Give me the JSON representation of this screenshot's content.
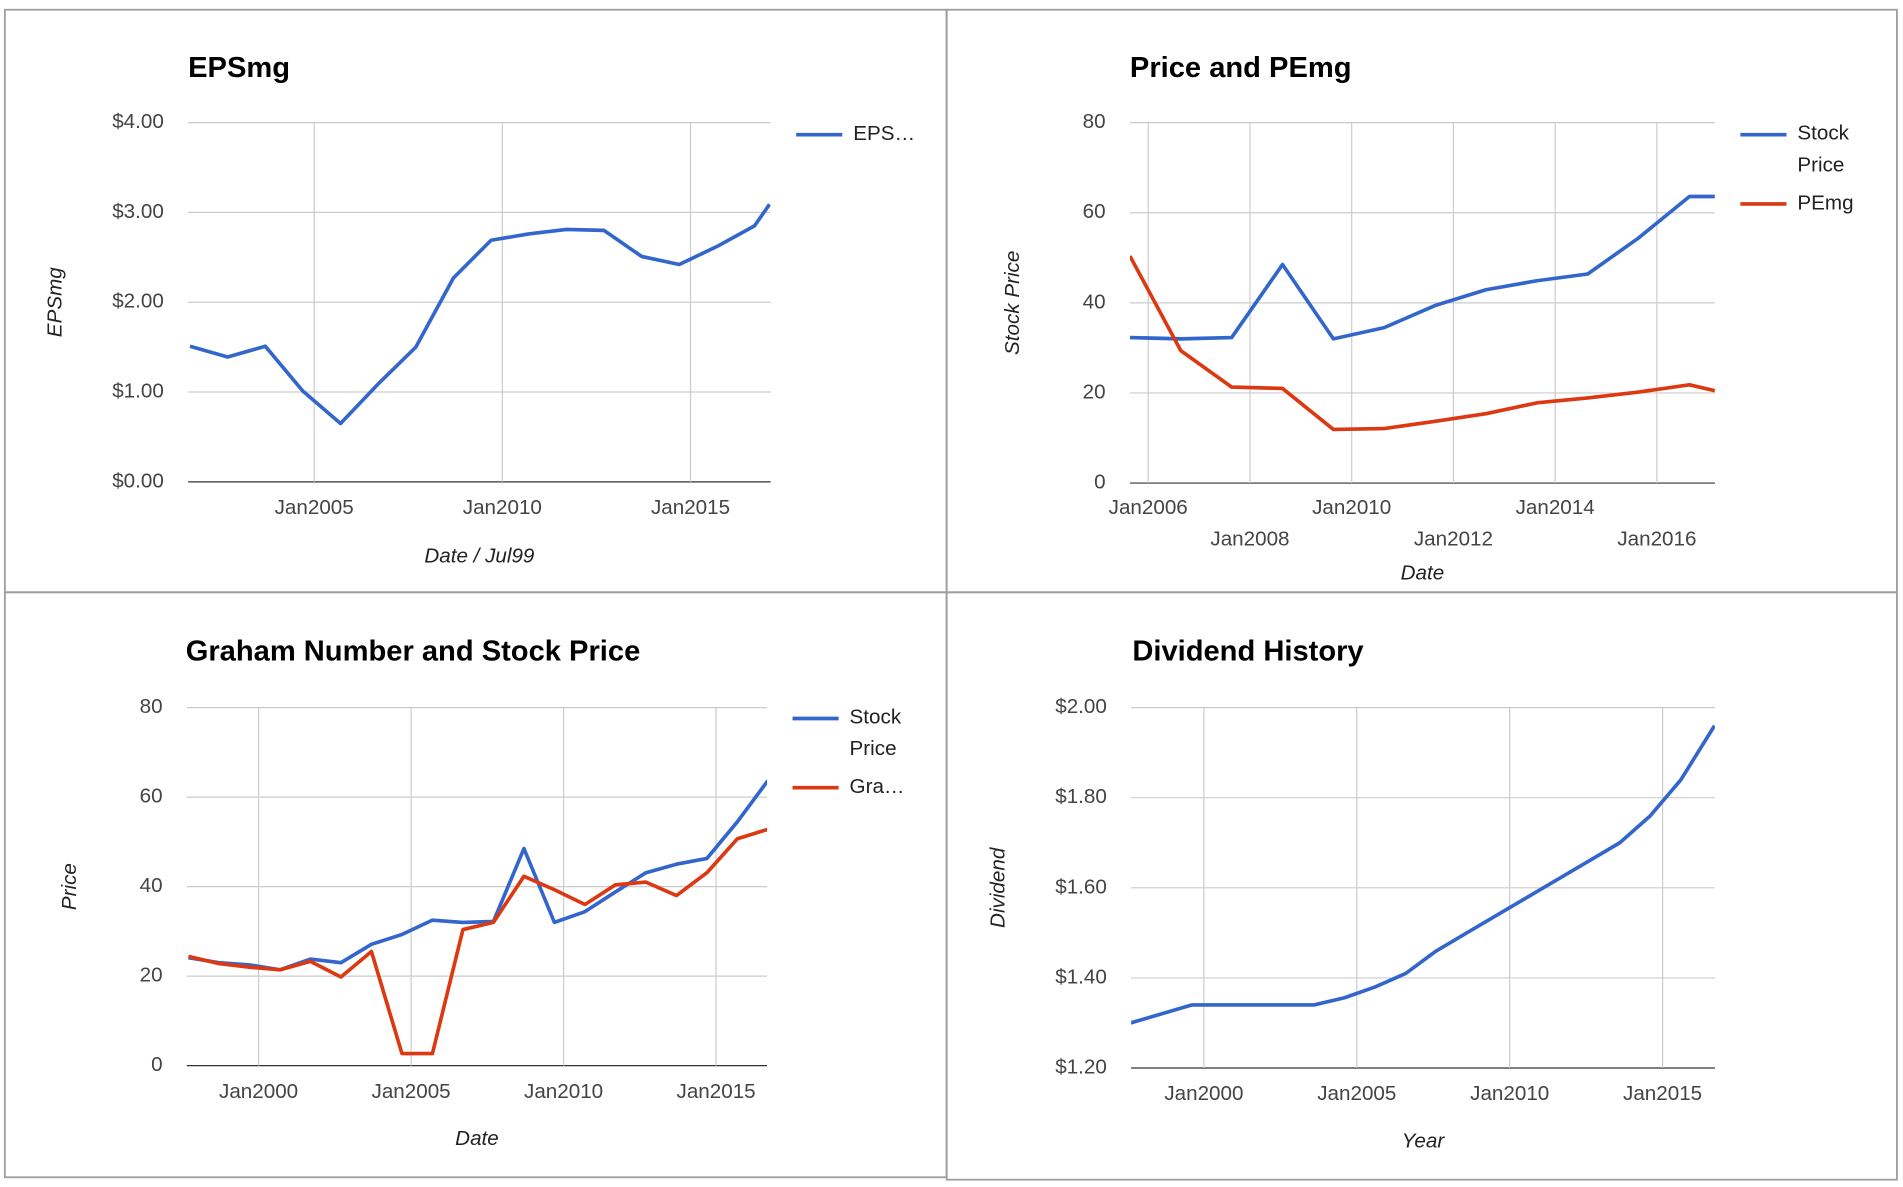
{
  "chart_data": [
    {
      "type": "line",
      "title": "EPSmg",
      "x_label": "Date / Jul99",
      "y_label": "EPSmg",
      "x": [
        2001.7,
        2002.7,
        2003.7,
        2004.7,
        2005.7,
        2006.7,
        2007.7,
        2008.7,
        2009.7,
        2010.7,
        2011.7,
        2012.7,
        2013.7,
        2014.7,
        2015.7,
        2016.7,
        2017.1
      ],
      "series": [
        {
          "name": "EPS…",
          "color": "#3366cc",
          "values": [
            1.51,
            1.39,
            1.51,
            1.01,
            0.65,
            1.09,
            1.5,
            2.27,
            2.69,
            2.76,
            2.81,
            2.8,
            2.51,
            2.42,
            2.62,
            2.85,
            3.09
          ]
        }
      ],
      "xlim": [
        2001.65,
        2017.13
      ],
      "xticks": [
        {
          "value": 2005,
          "label": "Jan2005"
        },
        {
          "value": 2010,
          "label": "Jan2010"
        },
        {
          "value": 2015,
          "label": "Jan2015"
        }
      ],
      "ylim": [
        0,
        4
      ],
      "yticks": [
        {
          "value": 0,
          "label": "$0.00"
        },
        {
          "value": 1,
          "label": "$1.00"
        },
        {
          "value": 2,
          "label": "$2.00"
        },
        {
          "value": 3,
          "label": "$3.00"
        },
        {
          "value": 4,
          "label": "$4.00"
        }
      ],
      "grid": true
    },
    {
      "type": "line",
      "title": "Price and PEmg",
      "x_label": "Date",
      "y_label": "Stock Price",
      "x": [
        2005.64,
        2006.64,
        2007.64,
        2008.64,
        2009.64,
        2010.64,
        2011.64,
        2012.64,
        2013.64,
        2014.64,
        2015.64,
        2016.64,
        2017.14
      ],
      "series": [
        {
          "name": "Stock Price",
          "color": "#3366cc",
          "values": [
            32.3,
            32,
            32.3,
            48.5,
            32,
            34.5,
            39.4,
            42.9,
            44.9,
            46.4,
            54.4,
            63.6,
            63.6
          ]
        },
        {
          "name": "PEmg",
          "color": "#dc3912",
          "values": [
            50.4,
            29.4,
            21.3,
            21,
            11.9,
            12.1,
            13.7,
            15.4,
            17.8,
            18.9,
            20.2,
            21.8,
            20.5
          ]
        }
      ],
      "xlim": [
        2005.64,
        2017.14
      ],
      "xticks": [
        {
          "value": 2006,
          "label": "Jan2006"
        },
        {
          "value": 2008,
          "label": "Jan2008"
        },
        {
          "value": 2010,
          "label": "Jan2010"
        },
        {
          "value": 2012,
          "label": "Jan2012"
        },
        {
          "value": 2014,
          "label": "Jan2014"
        },
        {
          "value": 2016,
          "label": "Jan2016"
        }
      ],
      "ylim": [
        0,
        80
      ],
      "yticks": [
        0,
        20,
        40,
        60,
        80
      ],
      "grid": true
    },
    {
      "type": "line",
      "title": "Graham Number and Stock Price",
      "x_label": "Date",
      "y_label": "Price",
      "x": [
        1997.7,
        1998.7,
        1999.7,
        2000.7,
        2001.7,
        2002.7,
        2003.7,
        2004.7,
        2005.7,
        2006.7,
        2007.7,
        2008.7,
        2009.7,
        2010.7,
        2011.7,
        2012.7,
        2013.7,
        2014.7,
        2015.7,
        2016.7
      ],
      "series": [
        {
          "name": "Stock Price",
          "color": "#3366cc",
          "values": [
            24.1,
            23,
            22.5,
            21.4,
            23.8,
            23,
            27.1,
            29.3,
            32.5,
            32,
            32.2,
            48.5,
            32,
            34.4,
            38.8,
            43.1,
            45,
            46.3,
            54.5,
            63.7
          ]
        },
        {
          "name": "Gra…",
          "color": "#dc3912",
          "values": [
            24.4,
            22.8,
            22,
            21.4,
            23.3,
            19.8,
            25.5,
            2.7,
            2.7,
            30.4,
            32,
            42.3,
            39.3,
            36,
            40.4,
            41,
            38,
            43.1,
            50.7,
            52.8
          ]
        }
      ],
      "xlim": [
        1997.65,
        2016.67
      ],
      "xticks": [
        {
          "value": 2000,
          "label": "Jan2000"
        },
        {
          "value": 2005,
          "label": "Jan2005"
        },
        {
          "value": 2010,
          "label": "Jan2010"
        },
        {
          "value": 2015,
          "label": "Jan2015"
        }
      ],
      "ylim": [
        0,
        80
      ],
      "yticks": [
        0,
        20,
        40,
        60,
        80
      ],
      "grid": true
    },
    {
      "type": "line",
      "title": "Dividend History",
      "x_label": "Year",
      "y_label": "Dividend",
      "x": [
        1997.6,
        1998.6,
        1999.6,
        2000.6,
        2001.6,
        2002.6,
        2003.6,
        2004.6,
        2005.6,
        2006.6,
        2007.6,
        2008.6,
        2009.6,
        2010.6,
        2011.6,
        2012.6,
        2013.6,
        2014.6,
        2015.6,
        2016.7
      ],
      "series": [
        {
          "color": "#3366cc",
          "values": [
            1.3,
            1.32,
            1.34,
            1.34,
            1.34,
            1.34,
            1.34,
            1.356,
            1.38,
            1.41,
            1.46,
            1.5,
            1.54,
            1.58,
            1.62,
            1.66,
            1.7,
            1.76,
            1.84,
            1.96
          ]
        }
      ],
      "xlim": [
        1997.62,
        2016.71
      ],
      "xticks": [
        {
          "value": 2000,
          "label": "Jan2000"
        },
        {
          "value": 2005,
          "label": "Jan2005"
        },
        {
          "value": 2010,
          "label": "Jan2010"
        },
        {
          "value": 2015,
          "label": "Jan2015"
        }
      ],
      "ylim": [
        1.2,
        2
      ],
      "yticks": [
        {
          "value": 1.2,
          "label": "$1.20"
        },
        {
          "value": 1.4,
          "label": "$1.40"
        },
        {
          "value": 1.6,
          "label": "$1.60"
        },
        {
          "value": 1.8,
          "label": "$1.80"
        },
        {
          "value": 2,
          "label": "$2.00"
        }
      ],
      "grid": true
    }
  ]
}
